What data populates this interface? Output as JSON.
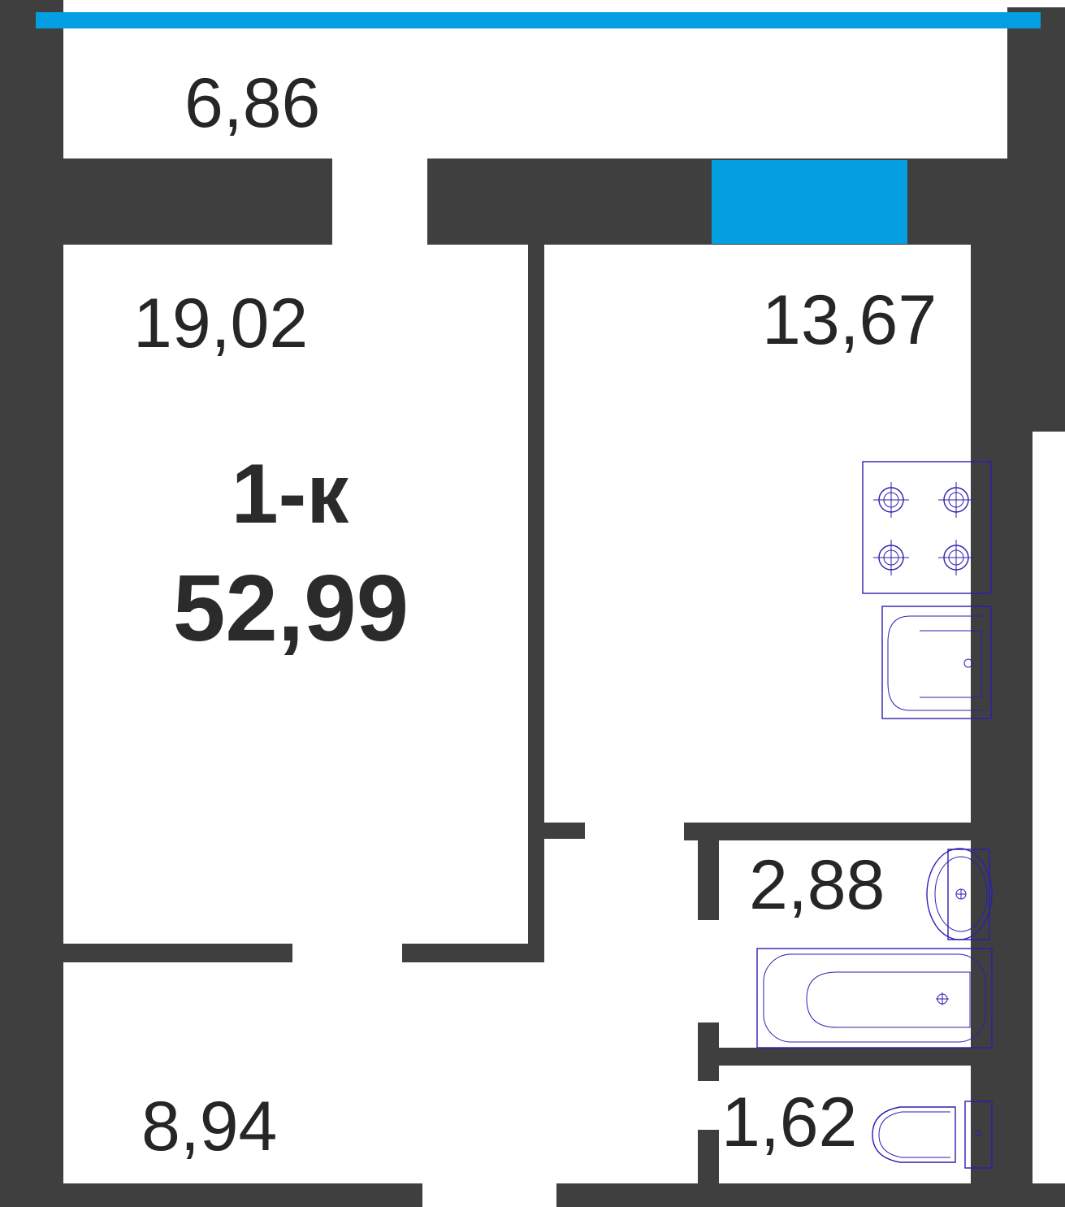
{
  "plan": {
    "type_label": "1-к",
    "total_area": "52,99"
  },
  "rooms": {
    "balcony": "6,86",
    "living_room": "19,02",
    "kitchen": "13,67",
    "bathroom": "2,88",
    "toilet": "1,62",
    "hallway": "8,94"
  },
  "colors": {
    "wall": "#3f3f3f",
    "glazing": "#049fe0",
    "fixtures": "#2b1fb0"
  },
  "icons": [
    "stove-icon",
    "sink-icon",
    "washbasin-icon",
    "bathtub-icon",
    "toilet-icon"
  ]
}
